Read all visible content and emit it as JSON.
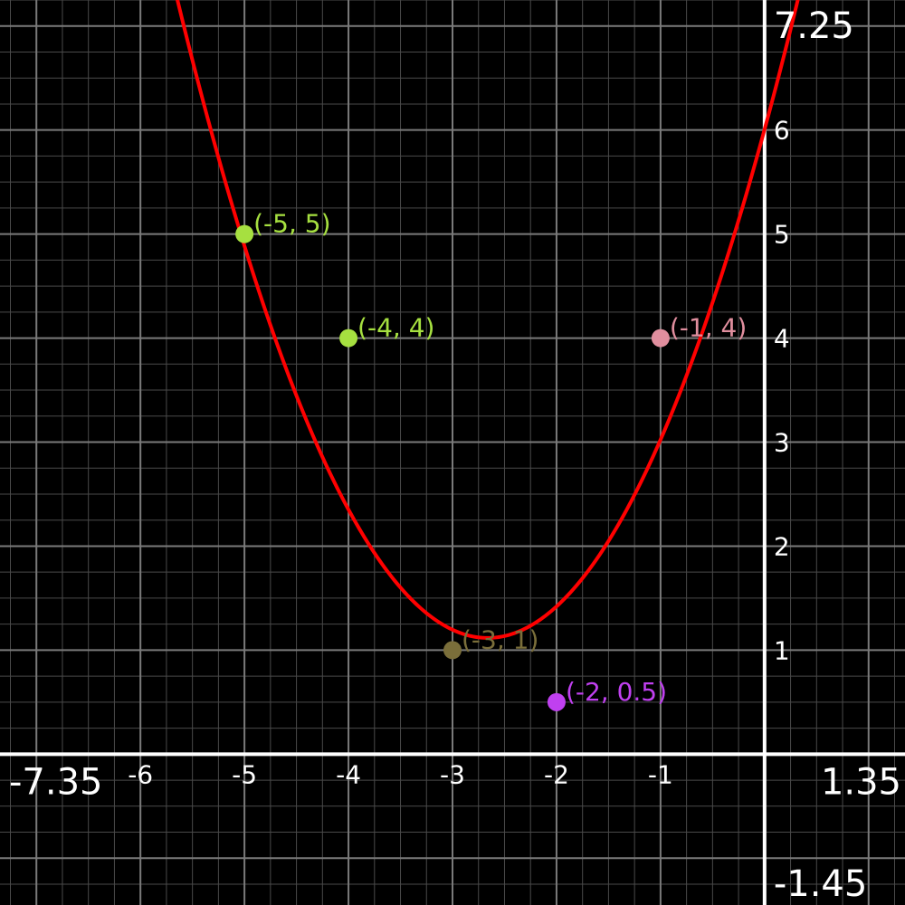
{
  "chart_data": {
    "type": "scatter",
    "xlim": [
      -7.35,
      1.35
    ],
    "ylim": [
      -1.45,
      7.25
    ],
    "xlim_labels": [
      "-7.35",
      "1.35"
    ],
    "ylim_labels": [
      "-1.45",
      "7.25"
    ],
    "grid": true,
    "minor_grid_step": 0.25,
    "major_grid_step": 1,
    "x_ticks": [
      {
        "value": -6,
        "label": "-6"
      },
      {
        "value": -5,
        "label": "-5"
      },
      {
        "value": -4,
        "label": "-4"
      },
      {
        "value": -3,
        "label": "-3"
      },
      {
        "value": -2,
        "label": "-2"
      },
      {
        "value": -1,
        "label": "-1"
      }
    ],
    "y_ticks": [
      {
        "value": 1,
        "label": "1"
      },
      {
        "value": 2,
        "label": "2"
      },
      {
        "value": 3,
        "label": "3"
      },
      {
        "value": 4,
        "label": "4"
      },
      {
        "value": 5,
        "label": "5"
      },
      {
        "value": 6,
        "label": "6"
      }
    ],
    "points": [
      {
        "x": -5,
        "y": 5,
        "label": "(-5, 5)",
        "color": "#a6e040"
      },
      {
        "x": -4,
        "y": 4,
        "label": "(-4, 4)",
        "color": "#a6e040"
      },
      {
        "x": -1,
        "y": 4,
        "label": "(-1, 4)",
        "color": "#e08e9e"
      },
      {
        "x": -3,
        "y": 1,
        "label": "(-3, 1)",
        "color": "#7a6e3a"
      },
      {
        "x": -2,
        "y": 0.5,
        "label": "(-2, 0.5)",
        "color": "#c040f0"
      }
    ],
    "curve": {
      "kind": "quadratic",
      "coefficients": [
        0.6897,
        3.6725,
        6.0063
      ],
      "color": "#ff0000"
    }
  }
}
